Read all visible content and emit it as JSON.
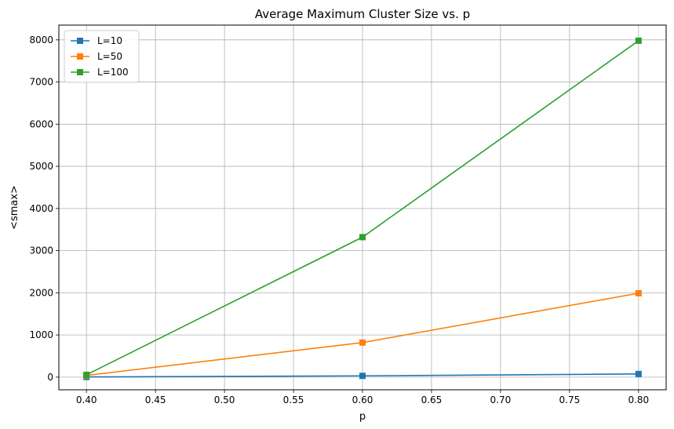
{
  "chart_data": {
    "type": "line",
    "title": "Average Maximum Cluster Size vs. p",
    "xlabel": "p",
    "ylabel": "<smax>",
    "x": [
      0.4,
      0.6,
      0.8
    ],
    "xlim": [
      0.38,
      0.82
    ],
    "ylim": [
      -300,
      8350
    ],
    "xticks": [
      0.4,
      0.45,
      0.5,
      0.55,
      0.6,
      0.65,
      0.7,
      0.75,
      0.8
    ],
    "xtick_labels": [
      "0.40",
      "0.45",
      "0.50",
      "0.55",
      "0.60",
      "0.65",
      "0.70",
      "0.75",
      "0.80"
    ],
    "yticks": [
      0,
      1000,
      2000,
      3000,
      4000,
      5000,
      6000,
      7000,
      8000
    ],
    "ytick_labels": [
      "0",
      "1000",
      "2000",
      "3000",
      "4000",
      "5000",
      "6000",
      "7000",
      "8000"
    ],
    "grid": true,
    "legend_position": "top-left",
    "marker": "square",
    "series": [
      {
        "name": "L=10",
        "values": [
          5,
          30,
          75
        ],
        "color": "#1f77b4"
      },
      {
        "name": "L=50",
        "values": [
          40,
          820,
          1990
        ],
        "color": "#ff7f0e"
      },
      {
        "name": "L=100",
        "values": [
          55,
          3320,
          7980
        ],
        "color": "#2ca02c"
      }
    ]
  }
}
